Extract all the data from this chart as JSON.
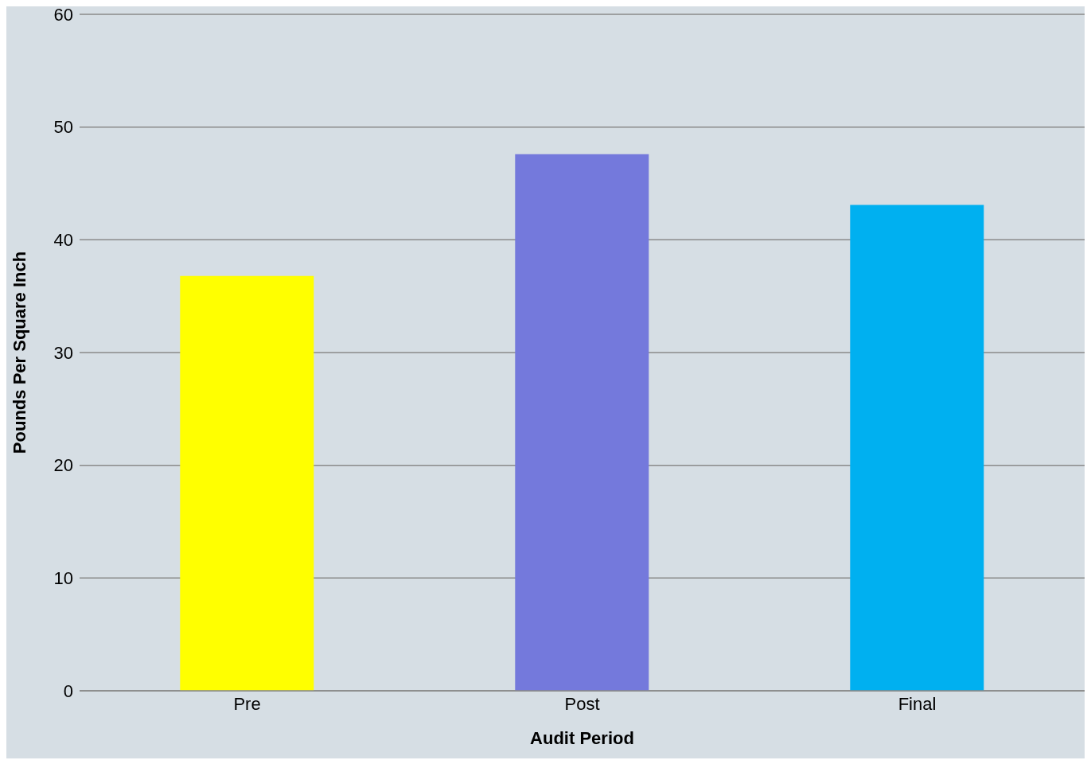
{
  "chart_data": {
    "type": "bar",
    "xlabel": "Audit Period",
    "ylabel": "Pounds Per Square Inch",
    "categories": [
      "Pre",
      "Post",
      "Final"
    ],
    "values": [
      36.8,
      47.6,
      43.1
    ],
    "colors": [
      "#ffff00",
      "#7479dc",
      "#00b0f0"
    ],
    "ylim": [
      0,
      60
    ],
    "yticks": [
      0,
      10,
      20,
      30,
      40,
      50,
      60
    ],
    "grid": "y",
    "legend": false
  }
}
